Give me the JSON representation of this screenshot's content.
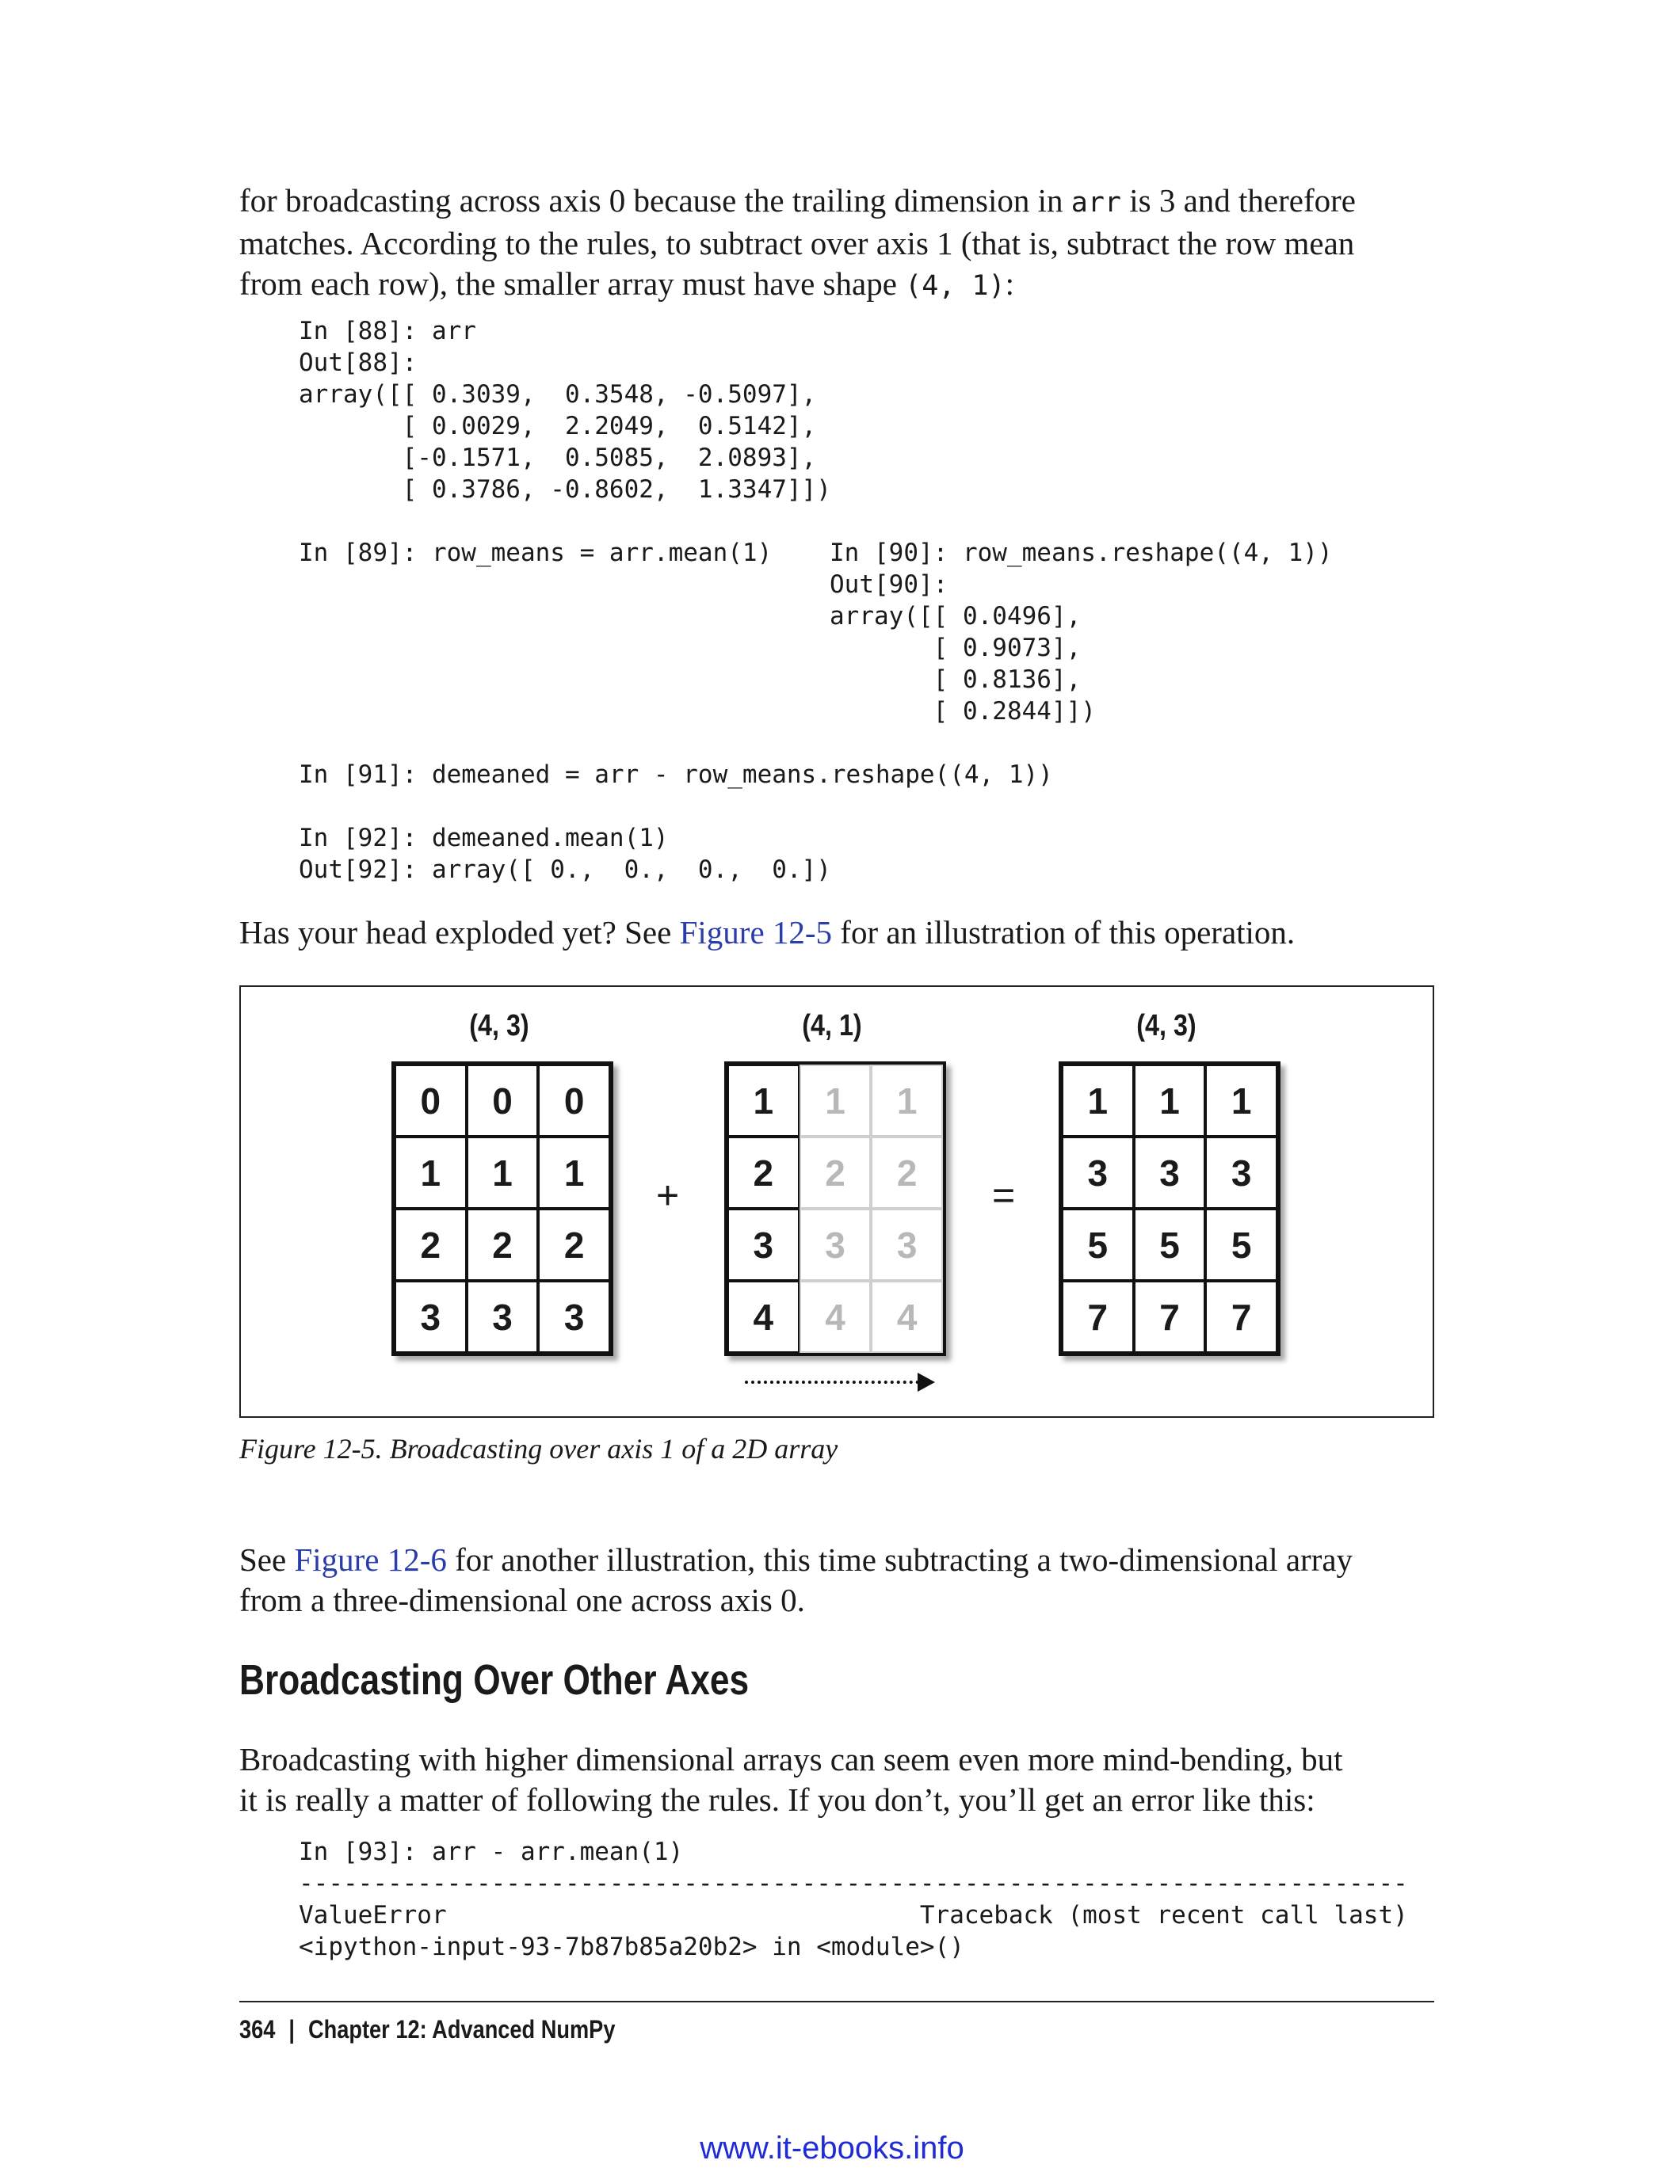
{
  "para1": {
    "line1_a": "for broadcasting across axis 0 because the trailing dimension in ",
    "line1_code": "arr",
    "line1_b": " is 3 and therefore",
    "line2": "matches. According to the rules, to subtract over axis 1 (that is, subtract the row mean",
    "line3_a": "from each row), the smaller array must have shape ",
    "line3_code": "(4, 1)",
    "line3_b": ":"
  },
  "code1": {
    "lines": [
      "In [88]: arr",
      "Out[88]:",
      "array([[ 0.3039,  0.3548, -0.5097],",
      "       [ 0.0029,  2.2049,  0.5142],",
      "       [-0.1571,  0.5085,  2.0893],",
      "       [ 0.3786, -0.8602,  1.3347]])"
    ],
    "left": "In [89]: row_means = arr.mean(1)",
    "right": [
      "In [90]: row_means.reshape((4, 1))",
      "Out[90]:",
      "array([[ 0.0496],",
      "       [ 0.9073],",
      "       [ 0.8136],",
      "       [ 0.2844]])"
    ],
    "after": [
      "In [91]: demeaned = arr - row_means.reshape((4, 1))",
      "",
      "In [92]: demeaned.mean(1)",
      "Out[92]: array([ 0.,  0.,  0.,  0.])"
    ]
  },
  "para2": {
    "a": "Has your head exploded yet? See ",
    "link": "Figure 12-5",
    "b": " for an illustration of this operation."
  },
  "figure": {
    "grid1": {
      "label": "(4, 3)",
      "rows": [
        [
          "0",
          "0",
          "0"
        ],
        [
          "1",
          "1",
          "1"
        ],
        [
          "2",
          "2",
          "2"
        ],
        [
          "3",
          "3",
          "3"
        ]
      ]
    },
    "grid2": {
      "label": "(4, 1)",
      "rows": [
        [
          "1",
          "1",
          "1"
        ],
        [
          "2",
          "2",
          "2"
        ],
        [
          "3",
          "3",
          "3"
        ],
        [
          "4",
          "4",
          "4"
        ]
      ]
    },
    "grid3": {
      "label": "(4, 3)",
      "rows": [
        [
          "1",
          "1",
          "1"
        ],
        [
          "3",
          "3",
          "3"
        ],
        [
          "5",
          "5",
          "5"
        ],
        [
          "7",
          "7",
          "7"
        ]
      ]
    },
    "plus": "+",
    "equals": "=",
    "caption": "Figure 12-5. Broadcasting over axis 1 of a 2D array"
  },
  "para3": {
    "a": "See ",
    "link": "Figure 12-6",
    "b": " for another illustration, this time subtracting a two-dimensional array",
    "line2": "from a three-dimensional one across axis 0."
  },
  "heading": "Broadcasting Over Other Axes",
  "para4": {
    "line1": "Broadcasting with higher dimensional arrays can seem even more mind-bending, but",
    "line2": "it is really a matter of following the rules. If you don’t, you’ll get an error like this:"
  },
  "code2": {
    "lines": [
      "In [93]: arr - arr.mean(1)",
      "---------------------------------------------------------------------------",
      "ValueError                                Traceback (most recent call last)",
      "<ipython-input-93-7b87b85a20b2> in <module>()"
    ]
  },
  "footer": {
    "page": "364",
    "sep": "|",
    "chapter": "Chapter 12:  Advanced NumPy"
  },
  "watermark": "www.it-ebooks.info"
}
